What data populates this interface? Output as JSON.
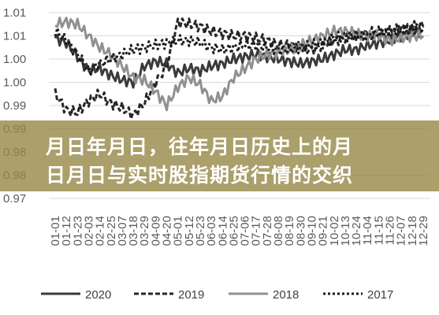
{
  "banner": {
    "line1": "月日年月日，往年月日历史上的月",
    "line2": "日月日与实时股指期货行情的交织"
  },
  "chart_data": {
    "type": "line",
    "title": "",
    "xlabel": "",
    "ylabel": "",
    "y_tick_labels": [
      "1.01",
      "1.01",
      "1.00",
      "1.00",
      "0.99",
      "0.99",
      "0.98",
      "0.98",
      "0.97"
    ],
    "ylim": [
      0.97,
      1.01
    ],
    "x_tick_labels": [
      "01-01",
      "01-12",
      "01-23",
      "02-03",
      "02-14",
      "02-25",
      "03-07",
      "03-18",
      "03-29",
      "04-09",
      "04-20",
      "05-01",
      "05-12",
      "05-23",
      "06-03",
      "06-14",
      "06-25",
      "07-06",
      "07-17",
      "07-28",
      "08-08",
      "08-19",
      "08-30",
      "09-10",
      "09-21",
      "10-02",
      "10-13",
      "10-24",
      "11-04",
      "11-15",
      "11-26",
      "12-07",
      "12-18",
      "12-29"
    ],
    "grid": "horizontal",
    "legend_position": "bottom",
    "series": [
      {
        "name": "2020",
        "color": "#3a3a3a",
        "dash": "solid",
        "values": [
          1.0045,
          1.0035,
          1.0005,
          0.9975,
          0.998,
          0.9965,
          0.9955,
          0.995,
          0.9985,
          0.9995,
          0.999,
          0.997,
          0.998,
          0.9975,
          0.9985,
          0.999,
          1.0,
          1.0005,
          1.001,
          1.0005,
          1.0,
          0.9995,
          0.999,
          0.9995,
          1.0,
          1.001,
          1.002,
          1.002,
          1.003,
          1.0035,
          1.004,
          1.005,
          1.0055,
          1.006
        ]
      },
      {
        "name": "2019",
        "color": "#262626",
        "dash": "6,3",
        "values": [
          0.9925,
          0.989,
          0.9885,
          0.991,
          0.9925,
          0.9905,
          0.9895,
          0.988,
          0.9905,
          0.995,
          0.9985,
          1.008,
          1.0075,
          1.007,
          1.006,
          1.0055,
          1.005,
          1.005,
          1.0045,
          1.004,
          1.003,
          1.003,
          1.0025,
          1.002,
          1.003,
          1.004,
          1.0045,
          1.005,
          1.0055,
          1.006,
          1.006,
          1.0065,
          1.007,
          1.007
        ]
      },
      {
        "name": "2018",
        "color": "#909090",
        "dash": "solid",
        "values": [
          1.0075,
          1.008,
          1.0075,
          1.005,
          1.0025,
          1.001,
          0.9985,
          0.996,
          0.9955,
          0.993,
          0.99,
          0.994,
          0.996,
          0.9945,
          0.991,
          0.992,
          0.996,
          0.998,
          1.0,
          1.001,
          1.0015,
          1.002,
          1.003,
          1.004,
          1.005,
          1.006,
          1.006,
          1.0055,
          1.005,
          1.005,
          1.004,
          1.0045,
          1.005,
          1.005
        ]
      },
      {
        "name": "2017",
        "color": "#1a1a1a",
        "dash": "3,3",
        "values": [
          1.006,
          1.004,
          1.001,
          0.9975,
          0.999,
          1.0,
          1.001,
          1.002,
          1.0025,
          1.003,
          1.0035,
          1.004,
          1.004,
          1.0035,
          1.0025,
          1.002,
          1.0025,
          1.003,
          1.003,
          1.0025,
          1.002,
          1.002,
          1.0025,
          1.003,
          1.0035,
          1.0045,
          1.005,
          1.005,
          1.005,
          1.0055,
          1.006,
          1.006,
          1.0065,
          1.007
        ]
      }
    ]
  }
}
